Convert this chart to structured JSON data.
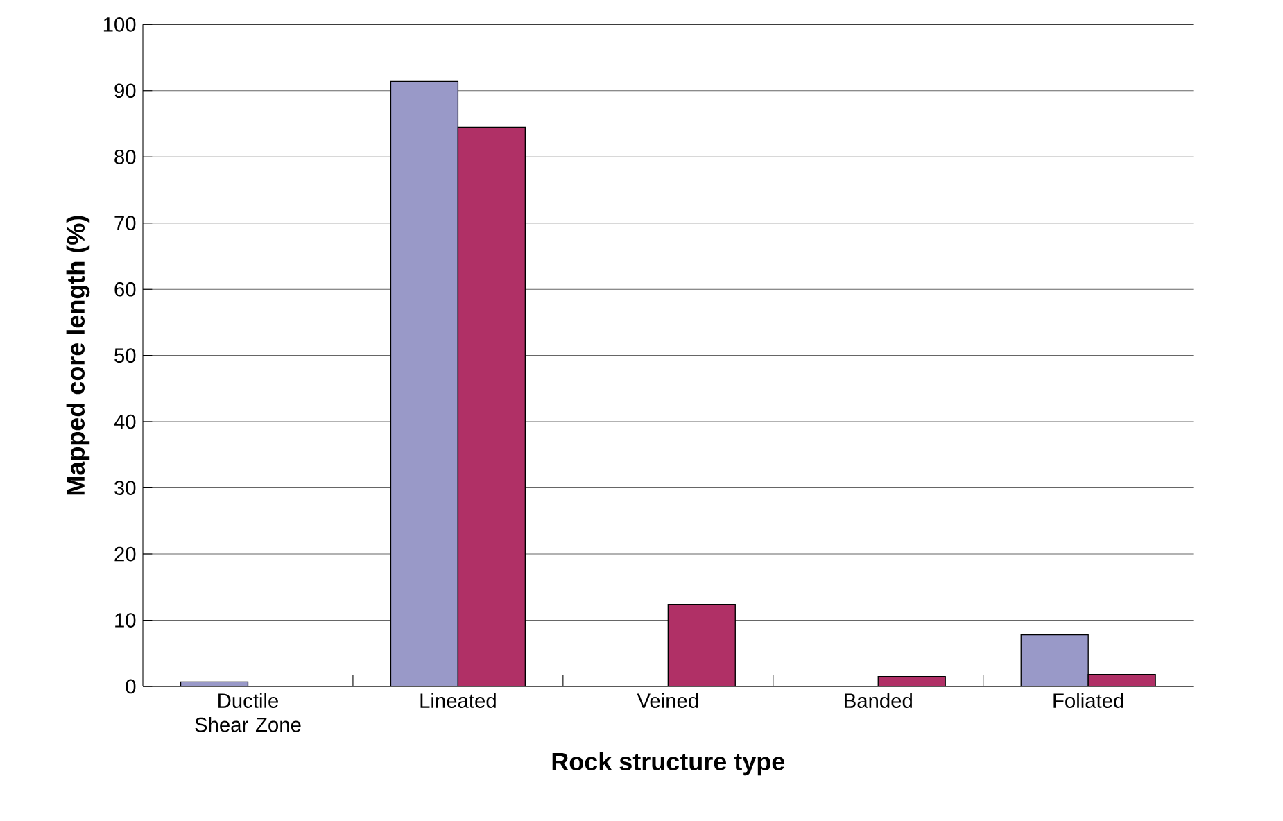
{
  "chart_data": {
    "type": "bar",
    "xlabel": "Rock structure type",
    "ylabel": "Mapped core length (%)",
    "categories": [
      "Ductile Shear Zone",
      "Lineated",
      "Veined",
      "Banded",
      "Foliated"
    ],
    "series": [
      {
        "color": "#9999c8",
        "values": [
          0.7,
          91.4,
          null,
          null,
          7.8
        ]
      },
      {
        "color": "#b03066",
        "values": [
          null,
          84.5,
          12.4,
          1.5,
          1.8
        ]
      }
    ],
    "ylim": [
      0,
      100
    ],
    "yticks": [
      0,
      10,
      20,
      30,
      40,
      50,
      60,
      70,
      80,
      90,
      100
    ],
    "grid": "y"
  }
}
